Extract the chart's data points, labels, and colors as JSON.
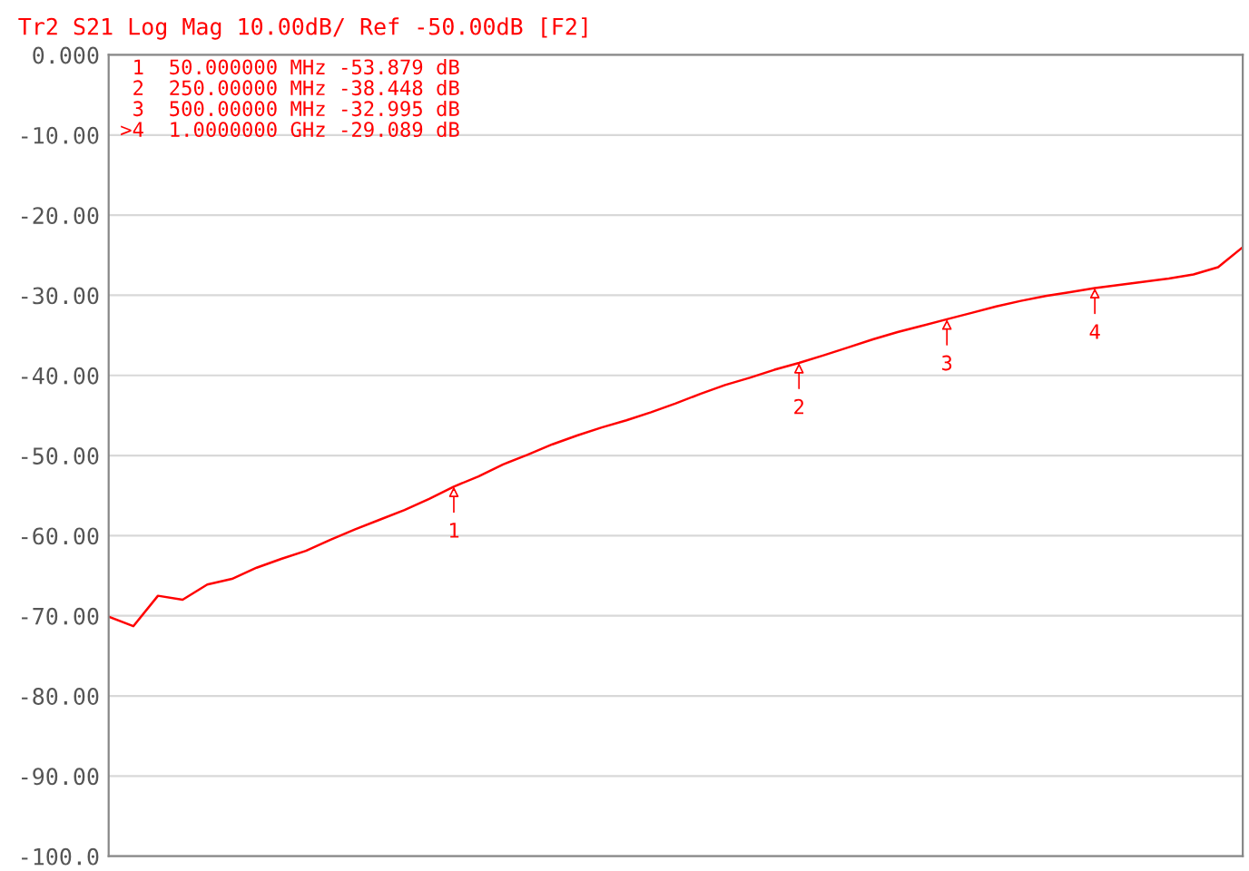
{
  "chart_data": {
    "type": "line",
    "title": "Tr2 S21 Log Mag 10.00dB/ Ref -50.00dB [F2]",
    "categories": [
      null,
      null,
      null,
      null,
      null,
      null,
      null,
      null,
      null,
      null,
      null,
      null,
      null,
      null,
      null,
      null,
      null,
      null,
      null,
      null,
      null,
      null,
      null,
      null,
      null,
      null,
      null,
      null,
      null,
      null,
      null,
      null,
      null,
      null,
      null,
      null,
      null,
      null,
      null,
      null,
      null,
      null,
      null,
      null,
      null,
      null,
      null
    ],
    "series": [
      {
        "color": "#ff0000",
        "values": [
          -70.1,
          -71.3,
          -67.5,
          -68.0,
          -66.1,
          -65.4,
          -64.0,
          -62.9,
          -61.9,
          -60.5,
          -59.2,
          -58.0,
          -56.8,
          -55.4,
          -53.879,
          -52.6,
          -51.1,
          -49.9,
          -48.6,
          -47.5,
          -46.5,
          -45.6,
          -44.6,
          -43.5,
          -42.3,
          -41.2,
          -40.3,
          -39.3,
          -38.448,
          -37.5,
          -36.5,
          -35.5,
          -34.6,
          -33.8,
          -32.995,
          -32.2,
          -31.4,
          -30.7,
          -30.1,
          -29.6,
          -29.089,
          -28.7,
          -28.3,
          -27.9,
          -27.4,
          -26.5,
          -24.0
        ]
      }
    ],
    "ylim": [
      -100,
      0
    ],
    "yticks": [
      {
        "value": 0,
        "label": "0.000"
      },
      {
        "value": -10,
        "label": "-10.00"
      },
      {
        "value": -20,
        "label": "-20.00"
      },
      {
        "value": -30,
        "label": "-30.00"
      },
      {
        "value": -40,
        "label": "-40.00"
      },
      {
        "value": -50,
        "label": "-50.00"
      },
      {
        "value": -60,
        "label": "-60.00"
      },
      {
        "value": -70,
        "label": "-70.00"
      },
      {
        "value": -80,
        "label": "-80.00"
      },
      {
        "value": -90,
        "label": "-90.00"
      },
      {
        "value": -100,
        "label": "-100.0"
      }
    ],
    "tick_labels": "y",
    "grid": "y",
    "annotations": [
      " 1  50.000000 MHz -53.879 dB",
      " 2  250.00000 MHz -38.448 dB",
      " 3  500.00000 MHz -32.995 dB",
      ">4  1.0000000 GHz -29.089 dB",
      {
        "text": "1",
        "y": -53.879
      },
      {
        "text": "2",
        "y": -38.448
      },
      {
        "text": "3",
        "y": -32.995
      },
      {
        "text": "4",
        "y": -29.089
      }
    ]
  }
}
